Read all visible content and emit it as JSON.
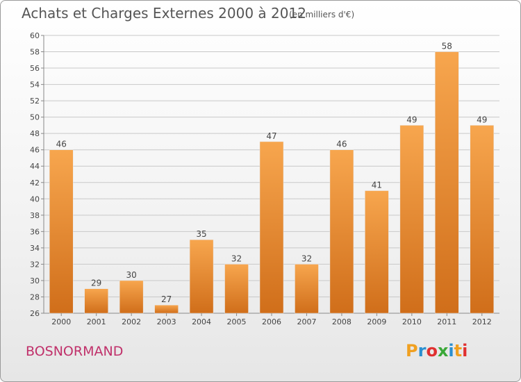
{
  "header": {
    "title": "Achats et Charges Externes 2000 à 2012",
    "subtitle": "(en milliers d'€)"
  },
  "footer": {
    "commune": "BOSNORMAND",
    "logo_text": "Proxiti"
  },
  "colors": {
    "bar_top": "#f7a64e",
    "bar_bottom": "#d06e1a",
    "commune_text": "#c0306a",
    "logo": [
      "#f0a020",
      "#2a8fd0",
      "#e03030",
      "#3aa838",
      "#2a8fd0",
      "#f0a020",
      "#e03030"
    ]
  },
  "chart_data": {
    "type": "bar",
    "categories": [
      "2000",
      "2001",
      "2002",
      "2003",
      "2004",
      "2005",
      "2006",
      "2007",
      "2008",
      "2009",
      "2010",
      "2011",
      "2012"
    ],
    "values": [
      46,
      29,
      30,
      27,
      35,
      32,
      47,
      32,
      46,
      41,
      49,
      58,
      49
    ],
    "ylim": [
      26,
      60
    ],
    "yticks": [
      26,
      28,
      30,
      32,
      34,
      36,
      38,
      40,
      42,
      44,
      46,
      48,
      50,
      52,
      54,
      56,
      58,
      60
    ],
    "grid": true,
    "data_labels": true
  }
}
